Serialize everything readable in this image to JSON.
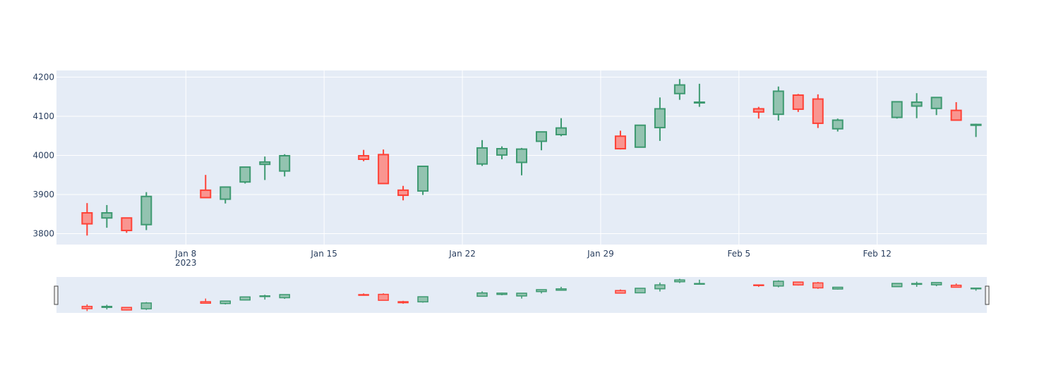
{
  "chart_data": {
    "type": "candlestick",
    "title": "",
    "xlabel": "",
    "ylabel": "",
    "ylim": [
      3772,
      4217
    ],
    "xlim": [
      "2023-01-02",
      "2023-02-17"
    ],
    "x_ticks": [
      {
        "date": "2023-01-08",
        "label": "Jan 8",
        "sublabel": "2023"
      },
      {
        "date": "2023-01-15",
        "label": "Jan 15",
        "sublabel": ""
      },
      {
        "date": "2023-01-22",
        "label": "Jan 22",
        "sublabel": ""
      },
      {
        "date": "2023-01-29",
        "label": "Jan 29",
        "sublabel": ""
      },
      {
        "date": "2023-02-05",
        "label": "Feb 5",
        "sublabel": ""
      },
      {
        "date": "2023-02-12",
        "label": "Feb 12",
        "sublabel": ""
      }
    ],
    "y_ticks": [
      3800,
      3900,
      4000,
      4100,
      4200
    ],
    "grid": true,
    "rangeslider": true,
    "increasing_color": "#3d9970",
    "increasing_fill": "#93c3b0",
    "decreasing_color": "#ff4136",
    "decreasing_fill": "#f99590",
    "plot_bg": "#e5ecf6",
    "candles": [
      {
        "date": "2023-01-03",
        "open": 3853,
        "high": 3878,
        "low": 3795,
        "close": 3825
      },
      {
        "date": "2023-01-04",
        "open": 3840,
        "high": 3873,
        "low": 3815,
        "close": 3853
      },
      {
        "date": "2023-01-05",
        "open": 3840,
        "high": 3840,
        "low": 3802,
        "close": 3808
      },
      {
        "date": "2023-01-06",
        "open": 3823,
        "high": 3906,
        "low": 3809,
        "close": 3895
      },
      {
        "date": "2023-01-09",
        "open": 3911,
        "high": 3950,
        "low": 3892,
        "close": 3892
      },
      {
        "date": "2023-01-10",
        "open": 3888,
        "high": 3920,
        "low": 3877,
        "close": 3919
      },
      {
        "date": "2023-01-11",
        "open": 3932,
        "high": 3970,
        "low": 3928,
        "close": 3970
      },
      {
        "date": "2023-01-12",
        "open": 3977,
        "high": 3997,
        "low": 3937,
        "close": 3983
      },
      {
        "date": "2023-01-13",
        "open": 3960,
        "high": 4003,
        "low": 3946,
        "close": 3999
      },
      {
        "date": "2023-01-17",
        "open": 3999,
        "high": 4014,
        "low": 3985,
        "close": 3990
      },
      {
        "date": "2023-01-18",
        "open": 4002,
        "high": 4015,
        "low": 3928,
        "close": 3928
      },
      {
        "date": "2023-01-19",
        "open": 3911,
        "high": 3922,
        "low": 3885,
        "close": 3898
      },
      {
        "date": "2023-01-20",
        "open": 3909,
        "high": 3973,
        "low": 3899,
        "close": 3972
      },
      {
        "date": "2023-01-23",
        "open": 3978,
        "high": 4039,
        "low": 3973,
        "close": 4019
      },
      {
        "date": "2023-01-24",
        "open": 4001,
        "high": 4023,
        "low": 3990,
        "close": 4017
      },
      {
        "date": "2023-01-25",
        "open": 3982,
        "high": 4019,
        "low": 3949,
        "close": 4016
      },
      {
        "date": "2023-01-26",
        "open": 4036,
        "high": 4061,
        "low": 4013,
        "close": 4060
      },
      {
        "date": "2023-01-27",
        "open": 4053,
        "high": 4095,
        "low": 4049,
        "close": 4070
      },
      {
        "date": "2023-01-30",
        "open": 4049,
        "high": 4063,
        "low": 4015,
        "close": 4017
      },
      {
        "date": "2023-01-31",
        "open": 4021,
        "high": 4077,
        "low": 4020,
        "close": 4077
      },
      {
        "date": "2023-02-01",
        "open": 4071,
        "high": 4148,
        "low": 4037,
        "close": 4119
      },
      {
        "date": "2023-02-02",
        "open": 4158,
        "high": 4195,
        "low": 4142,
        "close": 4180
      },
      {
        "date": "2023-02-03",
        "open": 4136,
        "high": 4183,
        "low": 4124,
        "close": 4136
      },
      {
        "date": "2023-02-06",
        "open": 4119,
        "high": 4124,
        "low": 4094,
        "close": 4111
      },
      {
        "date": "2023-02-07",
        "open": 4105,
        "high": 4176,
        "low": 4089,
        "close": 4164
      },
      {
        "date": "2023-02-08",
        "open": 4154,
        "high": 4157,
        "low": 4111,
        "close": 4118
      },
      {
        "date": "2023-02-09",
        "open": 4144,
        "high": 4156,
        "low": 4070,
        "close": 4082
      },
      {
        "date": "2023-02-10",
        "open": 4068,
        "high": 4094,
        "low": 4061,
        "close": 4090
      },
      {
        "date": "2023-02-13",
        "open": 4097,
        "high": 4138,
        "low": 4094,
        "close": 4137
      },
      {
        "date": "2023-02-14",
        "open": 4126,
        "high": 4159,
        "low": 4095,
        "close": 4136
      },
      {
        "date": "2023-02-15",
        "open": 4120,
        "high": 4148,
        "low": 4103,
        "close": 4148
      },
      {
        "date": "2023-02-16",
        "open": 4115,
        "high": 4136,
        "low": 4090,
        "close": 4090
      },
      {
        "date": "2023-02-17",
        "open": 4077,
        "high": 4081,
        "low": 4047,
        "close": 4079
      }
    ]
  }
}
